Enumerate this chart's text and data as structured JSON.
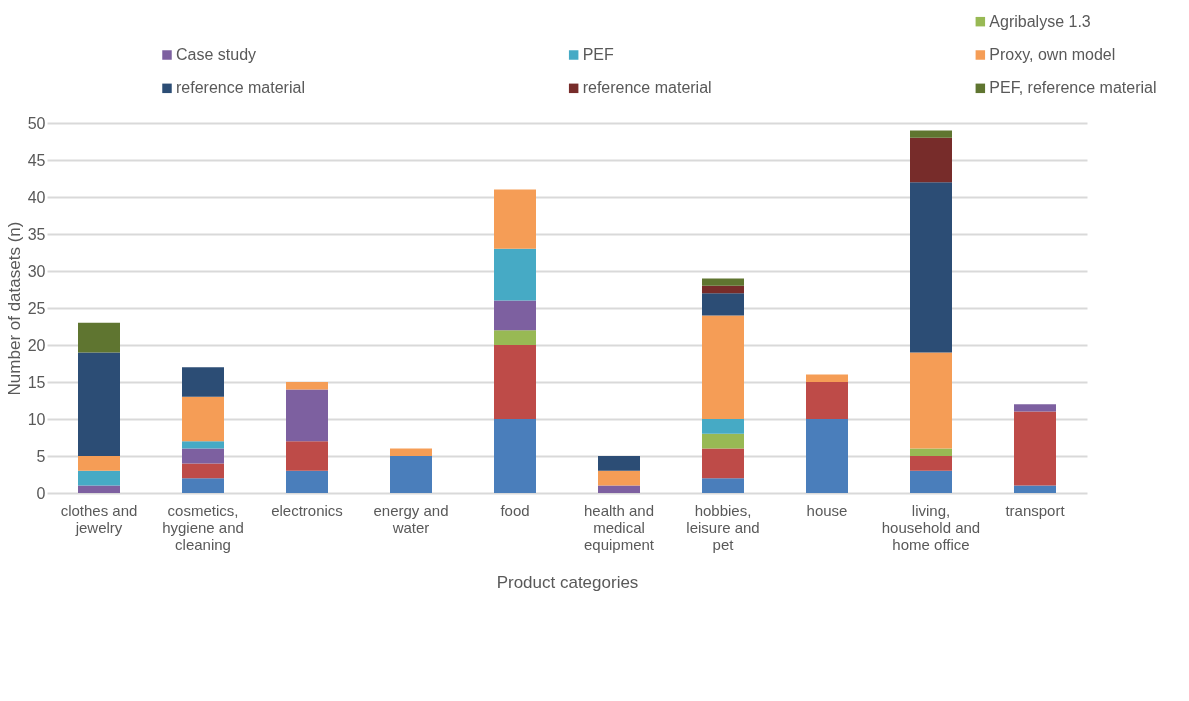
{
  "chart_data": {
    "type": "bar",
    "stacked": true,
    "xlabel": "Product categories",
    "ylabel": "Number of datasets (n)",
    "categories": [
      "clothes and jewelry",
      "cosmetics, hygiene and cleaning",
      "electronics",
      "energy and water",
      "food",
      "health and medical equipment",
      "hobbies, leisure and pet",
      "house",
      "living, household and home office",
      "transport"
    ],
    "ylim": [
      0,
      50
    ],
    "yticks": [
      0,
      5,
      10,
      15,
      20,
      25,
      30,
      35,
      40,
      45,
      50
    ],
    "grid": "y",
    "legend": "top",
    "series": [
      {
        "color": "#4a7ebb",
        "values": [
          0,
          2,
          3,
          5,
          10,
          0,
          2,
          10,
          3,
          1
        ]
      },
      {
        "color": "#be4b48",
        "values": [
          0,
          2,
          4,
          0,
          10,
          0,
          4,
          5,
          2,
          10
        ]
      },
      {
        "name": "Agribalyse 1.3",
        "color": "#98b954",
        "values": [
          0,
          0,
          0,
          0,
          2,
          0,
          2,
          0,
          1,
          0
        ]
      },
      {
        "name": "Case study",
        "color": "#7d60a0",
        "values": [
          1,
          2,
          7,
          0,
          4,
          1,
          0,
          0,
          0,
          1
        ]
      },
      {
        "name": "PEF",
        "color": "#46aac5",
        "values": [
          2,
          1,
          0,
          0,
          7,
          0,
          2,
          0,
          0,
          0
        ]
      },
      {
        "name": "Proxy, own model",
        "color": "#f59d56",
        "values": [
          2,
          6,
          1,
          1,
          8,
          2,
          14,
          1,
          13,
          0
        ]
      },
      {
        "name": "reference material",
        "color": "#2c4d75",
        "values": [
          14,
          4,
          0,
          0,
          0,
          2,
          3,
          0,
          23,
          0
        ]
      },
      {
        "name": "reference material",
        "color": "#772c2a",
        "values": [
          0,
          0,
          0,
          0,
          0,
          0,
          1,
          0,
          6,
          0
        ]
      },
      {
        "name": "PEF, reference material",
        "color": "#5f7530",
        "values": [
          4,
          0,
          0,
          0,
          0,
          0,
          1,
          0,
          1,
          0
        ]
      }
    ]
  }
}
